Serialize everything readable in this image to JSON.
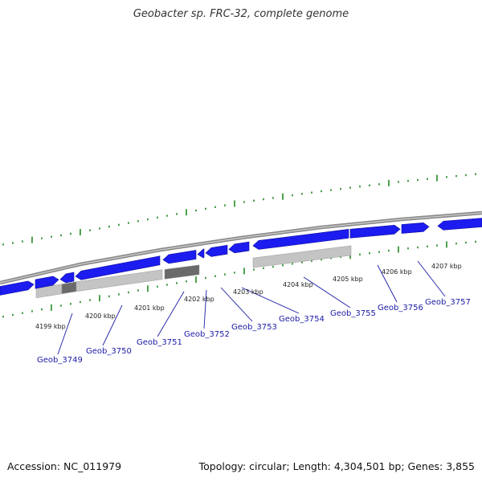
{
  "title": "Geobacter sp. FRC-32, complete genome",
  "footer": {
    "accession": "Accession: NC_011979",
    "summary": "Topology: circular; Length: 4,304,501 bp; Genes: 3,855"
  },
  "colors": {
    "gene": "#1c1cf0",
    "backbone": "#8a8a8a",
    "tick": "#238a23",
    "label": "#1a1aa6",
    "feature_light": "#c4c4c4",
    "feature_dark": "#6a6a6a"
  },
  "ruler_labels": [
    "4199 kbp",
    "4200 kbp",
    "4201 kbp",
    "4202 kbp",
    "4203 kbp",
    "4204 kbp",
    "4205 kbp",
    "4206 kbp",
    "4207 kbp"
  ],
  "gene_labels": [
    "Geob_3749",
    "Geob_3750",
    "Geob_3751",
    "Geob_3752",
    "Geob_3753",
    "Geob_3754",
    "Geob_3755",
    "Geob_3756",
    "Geob_3757"
  ]
}
